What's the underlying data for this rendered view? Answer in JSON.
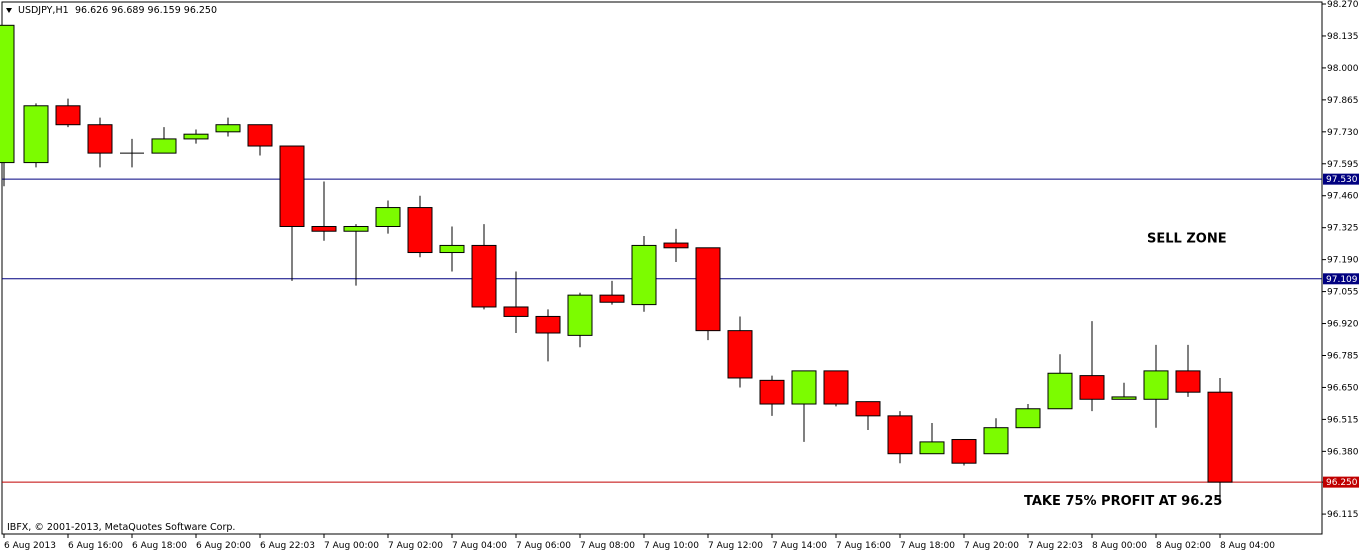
{
  "header": {
    "symbol": "USDJPY,H1",
    "ohlc": "96.626 96.689 96.159 96.250"
  },
  "copyright": "IBFX, © 2001-2013, MetaQuotes Software Corp.",
  "colors": {
    "bull": "#7cfc00",
    "bear": "#ff0000",
    "wick": "#000000",
    "hline": "#000080",
    "hline_tp": "#c00000"
  },
  "chart_data": {
    "type": "candlestick",
    "ylim": [
      96.09,
      98.27
    ],
    "y_ticks": [
      "98.270",
      "98.135",
      "98.000",
      "97.865",
      "97.730",
      "97.595",
      "97.460",
      "97.325",
      "97.190",
      "97.055",
      "96.920",
      "96.785",
      "96.650",
      "96.515",
      "96.380",
      "96.250",
      "96.115"
    ],
    "x_ticks": [
      "6 Aug 2013",
      "6 Aug 16:00",
      "6 Aug 18:00",
      "6 Aug 20:00",
      "6 Aug 22:03",
      "7 Aug 00:00",
      "7 Aug 02:00",
      "7 Aug 04:00",
      "7 Aug 06:00",
      "7 Aug 08:00",
      "7 Aug 10:00",
      "7 Aug 12:00",
      "7 Aug 14:00",
      "7 Aug 16:00",
      "7 Aug 18:00",
      "7 Aug 20:00",
      "7 Aug 22:03",
      "8 Aug 00:00",
      "8 Aug 02:00",
      "8 Aug 04:00"
    ],
    "candles": [
      {
        "o": 97.6,
        "h": 98.18,
        "l": 97.5,
        "c": 98.18
      },
      {
        "o": 97.6,
        "h": 97.85,
        "l": 97.58,
        "c": 97.84
      },
      {
        "o": 97.84,
        "h": 97.87,
        "l": 97.75,
        "c": 97.76
      },
      {
        "o": 97.76,
        "h": 97.79,
        "l": 97.58,
        "c": 97.64
      },
      {
        "o": 97.64,
        "h": 97.7,
        "l": 97.58,
        "c": 97.64
      },
      {
        "o": 97.64,
        "h": 97.75,
        "l": 97.64,
        "c": 97.7
      },
      {
        "o": 97.7,
        "h": 97.74,
        "l": 97.68,
        "c": 97.72
      },
      {
        "o": 97.73,
        "h": 97.79,
        "l": 97.71,
        "c": 97.76
      },
      {
        "o": 97.76,
        "h": 97.76,
        "l": 97.63,
        "c": 97.67
      },
      {
        "o": 97.67,
        "h": 97.67,
        "l": 97.1,
        "c": 97.33
      },
      {
        "o": 97.33,
        "h": 97.52,
        "l": 97.27,
        "c": 97.31
      },
      {
        "o": 97.31,
        "h": 97.34,
        "l": 97.08,
        "c": 97.33
      },
      {
        "o": 97.33,
        "h": 97.44,
        "l": 97.3,
        "c": 97.41
      },
      {
        "o": 97.41,
        "h": 97.46,
        "l": 97.2,
        "c": 97.22
      },
      {
        "o": 97.22,
        "h": 97.33,
        "l": 97.14,
        "c": 97.25
      },
      {
        "o": 97.25,
        "h": 97.34,
        "l": 96.98,
        "c": 96.99
      },
      {
        "o": 96.99,
        "h": 97.14,
        "l": 96.88,
        "c": 96.95
      },
      {
        "o": 96.95,
        "h": 96.98,
        "l": 96.76,
        "c": 96.88
      },
      {
        "o": 96.87,
        "h": 97.05,
        "l": 96.82,
        "c": 97.04
      },
      {
        "o": 97.04,
        "h": 97.1,
        "l": 97.0,
        "c": 97.01
      },
      {
        "o": 97.0,
        "h": 97.29,
        "l": 96.97,
        "c": 97.25
      },
      {
        "o": 97.26,
        "h": 97.32,
        "l": 97.18,
        "c": 97.24
      },
      {
        "o": 97.24,
        "h": 97.24,
        "l": 96.85,
        "c": 96.89
      },
      {
        "o": 96.89,
        "h": 96.95,
        "l": 96.65,
        "c": 96.69
      },
      {
        "o": 96.68,
        "h": 96.7,
        "l": 96.53,
        "c": 96.58
      },
      {
        "o": 96.58,
        "h": 96.72,
        "l": 96.42,
        "c": 96.72
      },
      {
        "o": 96.72,
        "h": 96.72,
        "l": 96.57,
        "c": 96.58
      },
      {
        "o": 96.59,
        "h": 96.59,
        "l": 96.47,
        "c": 96.53
      },
      {
        "o": 96.53,
        "h": 96.55,
        "l": 96.33,
        "c": 96.37
      },
      {
        "o": 96.37,
        "h": 96.5,
        "l": 96.37,
        "c": 96.42
      },
      {
        "o": 96.43,
        "h": 96.43,
        "l": 96.32,
        "c": 96.33
      },
      {
        "o": 96.37,
        "h": 96.52,
        "l": 96.37,
        "c": 96.48
      },
      {
        "o": 96.48,
        "h": 96.58,
        "l": 96.48,
        "c": 96.56
      },
      {
        "o": 96.56,
        "h": 96.79,
        "l": 96.56,
        "c": 96.71
      },
      {
        "o": 96.7,
        "h": 96.93,
        "l": 96.55,
        "c": 96.6
      },
      {
        "o": 96.6,
        "h": 96.67,
        "l": 96.6,
        "c": 96.61
      },
      {
        "o": 96.6,
        "h": 96.83,
        "l": 96.48,
        "c": 96.72
      },
      {
        "o": 96.72,
        "h": 96.83,
        "l": 96.61,
        "c": 96.63
      },
      {
        "o": 96.63,
        "h": 96.69,
        "l": 96.16,
        "c": 96.25
      }
    ],
    "hlines": [
      {
        "price": 97.53,
        "label": "97.530",
        "style": "navy"
      },
      {
        "price": 97.109,
        "label": "97.109",
        "style": "navy"
      },
      {
        "price": 96.25,
        "label": "96.250",
        "style": "tp"
      }
    ],
    "annotations": [
      {
        "text": "SELL ZONE",
        "price": 97.28
      },
      {
        "text": "TAKE 75% PROFIT AT 96.25",
        "price": 96.17
      }
    ]
  }
}
